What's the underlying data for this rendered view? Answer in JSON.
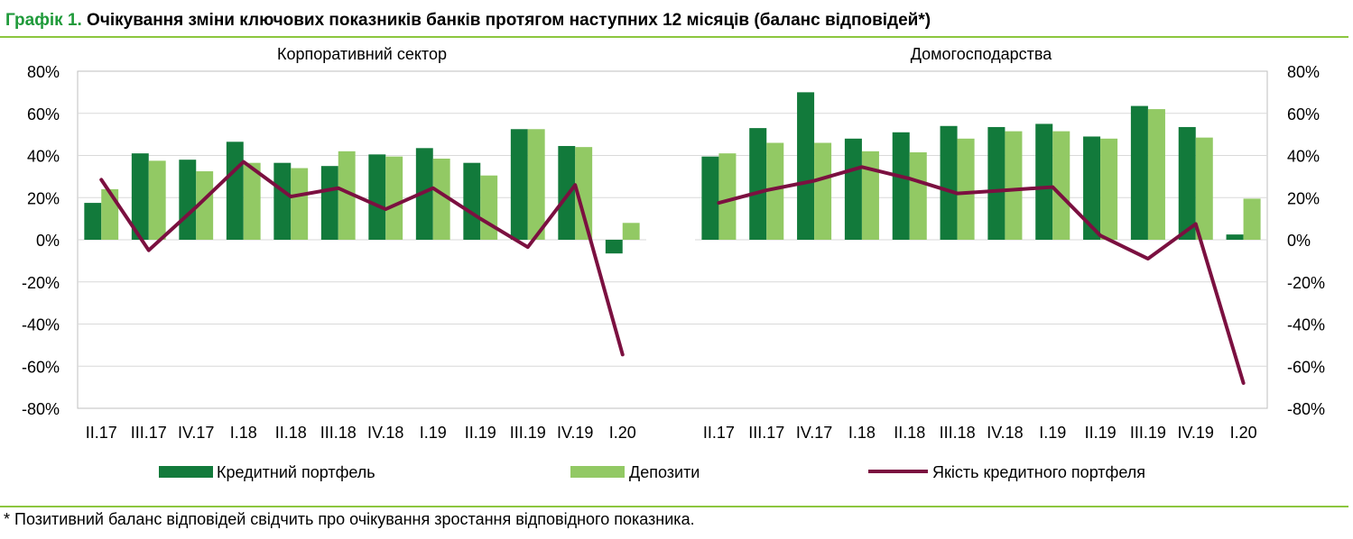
{
  "header": {
    "number": "Графік 1.",
    "title": "Очікування зміни ключових показників банків протягом наступних 12 місяців (баланс відповідей*)"
  },
  "footnote": "* Позитивний баланс відповідей свідчить про очікування зростання відповідного показника.",
  "colors": {
    "credit": "#127a3b",
    "deposits": "#92c964",
    "quality": "#7b1040",
    "rule": "#8cc63f",
    "title_number": "#1f9a3a"
  },
  "chart_data": [
    {
      "type": "bar",
      "title": "Корпоративний сектор",
      "categories": [
        "II.17",
        "III.17",
        "IV.17",
        "I.18",
        "II.18",
        "III.18",
        "IV.18",
        "I.19",
        "II.19",
        "III.19",
        "IV.19",
        "I.20"
      ],
      "ylim": [
        -80,
        80
      ],
      "ytick_labels": [
        "80%",
        "60%",
        "40%",
        "20%",
        "0%",
        "-20%",
        "-40%",
        "-60%",
        "-80%"
      ],
      "y_axis_side": "left",
      "grid": true,
      "series": [
        {
          "name": "Кредитний портфель",
          "type": "bar",
          "values": [
            17.5,
            41,
            38,
            46.5,
            36.5,
            35,
            40.5,
            43.5,
            36.5,
            52.5,
            44.5,
            -6.5
          ]
        },
        {
          "name": "Депозити",
          "type": "bar",
          "values": [
            24,
            37.5,
            32.5,
            36.5,
            34,
            42,
            39.5,
            38.5,
            30.5,
            52.5,
            44,
            8
          ]
        },
        {
          "name": "Якість кредитного портфеля",
          "type": "line",
          "values": [
            28.5,
            -5,
            15.5,
            37,
            20.5,
            24.5,
            14.5,
            24.5,
            10,
            -3.5,
            26,
            -54.5
          ]
        }
      ]
    },
    {
      "type": "bar",
      "title": "Домогосподарства",
      "categories": [
        "II.17",
        "III.17",
        "IV.17",
        "I.18",
        "II.18",
        "III.18",
        "IV.18",
        "I.19",
        "II.19",
        "III.19",
        "IV.19",
        "I.20"
      ],
      "ylim": [
        -80,
        80
      ],
      "ytick_labels": [
        "80%",
        "60%",
        "40%",
        "20%",
        "0%",
        "-20%",
        "-40%",
        "-60%",
        "-80%"
      ],
      "y_axis_side": "right",
      "grid": true,
      "series": [
        {
          "name": "Кредитний портфель",
          "type": "bar",
          "values": [
            39.5,
            53,
            70,
            48,
            51,
            54,
            53.5,
            55,
            49,
            63.5,
            53.5,
            2.5
          ]
        },
        {
          "name": "Депозити",
          "type": "bar",
          "values": [
            41,
            46,
            46,
            42,
            41.5,
            48,
            51.5,
            51.5,
            48,
            62,
            48.5,
            19.5
          ]
        },
        {
          "name": "Якість кредитного портфеля",
          "type": "line",
          "values": [
            17.5,
            23.5,
            28,
            34.5,
            29,
            22,
            23.5,
            25,
            2,
            -9,
            7.5,
            -68
          ]
        }
      ]
    }
  ],
  "legend": {
    "placement": "bottom",
    "items": [
      {
        "label": "Кредитний портфель",
        "kind": "bar",
        "color": "#127a3b"
      },
      {
        "label": "Депозити",
        "kind": "bar",
        "color": "#92c964"
      },
      {
        "label": "Якість кредитного портфеля",
        "kind": "line",
        "color": "#7b1040"
      }
    ]
  }
}
